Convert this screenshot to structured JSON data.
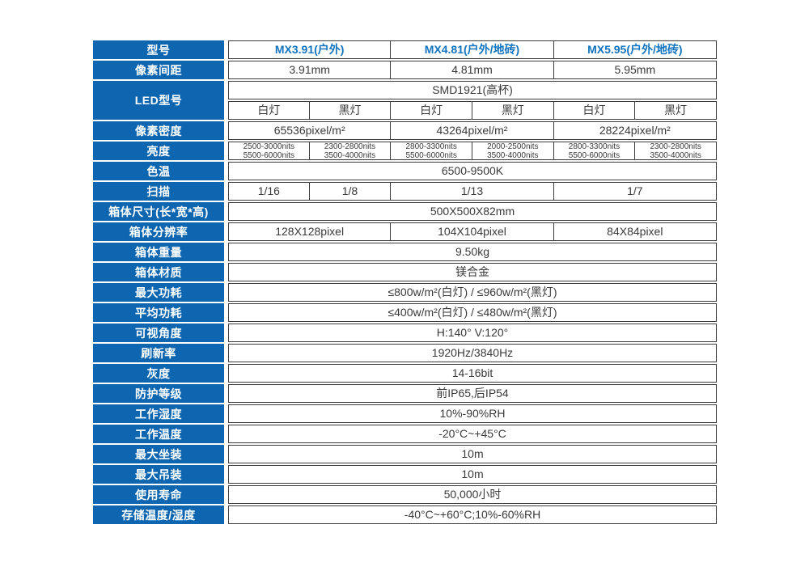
{
  "colors": {
    "label_bg": "#0f66b0",
    "label_fg": "#ffffff",
    "header_fg": "#1274bf",
    "body_fg": "#3a3a3a",
    "border": "#3c3c3c",
    "page_bg": "#ffffff"
  },
  "table": {
    "rows": [
      {
        "label": "型号",
        "type": "header",
        "lines": [
          [
            {
              "t": "MX3.91(户外)",
              "s": 2
            },
            {
              "t": "MX4.81(户外/地砖)",
              "s": 2
            },
            {
              "t": "MX5.95(户外/地砖)",
              "s": 2
            }
          ]
        ]
      },
      {
        "label": "像素间距",
        "lines": [
          [
            {
              "t": "3.91mm",
              "s": 2
            },
            {
              "t": "4.81mm",
              "s": 2
            },
            {
              "t": "5.95mm",
              "s": 2
            }
          ]
        ]
      },
      {
        "label": "LED型号",
        "type": "led",
        "lines": [
          [
            {
              "t": "SMD1921(高杯)",
              "s": 6
            }
          ],
          [
            {
              "t": "白灯",
              "s": 1
            },
            {
              "t": "黑灯",
              "s": 1
            },
            {
              "t": "白灯",
              "s": 1
            },
            {
              "t": "黑灯",
              "s": 1
            },
            {
              "t": "白灯",
              "s": 1
            },
            {
              "t": "黑灯",
              "s": 1
            }
          ]
        ]
      },
      {
        "label": "像素密度",
        "lines": [
          [
            {
              "t": "65536pixel/m²",
              "s": 2
            },
            {
              "t": "43264pixel/m²",
              "s": 2
            },
            {
              "t": "28224pixel/m²",
              "s": 2
            }
          ]
        ]
      },
      {
        "label": "亮度",
        "type": "small",
        "lines": [
          [
            {
              "t": "2500-3000nits\n5500-6000nits",
              "s": 1
            },
            {
              "t": "2300-2800nits\n3500-4000nits",
              "s": 1
            },
            {
              "t": "2800-3300nits\n5500-6000nits",
              "s": 1
            },
            {
              "t": "2000-2500nits\n3500-4000nits",
              "s": 1
            },
            {
              "t": "2800-3300nits\n5500-6000nits",
              "s": 1
            },
            {
              "t": "2300-2800nits\n3500-4000nits",
              "s": 1
            }
          ]
        ]
      },
      {
        "label": "色温",
        "lines": [
          [
            {
              "t": "6500-9500K",
              "s": 6
            }
          ]
        ]
      },
      {
        "label": "扫描",
        "lines": [
          [
            {
              "t": "1/16",
              "s": 1
            },
            {
              "t": "1/8",
              "s": 1
            },
            {
              "t": "1/13",
              "s": 2
            },
            {
              "t": "1/7",
              "s": 2
            }
          ]
        ]
      },
      {
        "label": "箱体尺寸(长*宽*高)",
        "lines": [
          [
            {
              "t": "500X500X82mm",
              "s": 6
            }
          ]
        ]
      },
      {
        "label": "箱体分辨率",
        "lines": [
          [
            {
              "t": "128X128pixel",
              "s": 2
            },
            {
              "t": "104X104pixel",
              "s": 2
            },
            {
              "t": "84X84pixel",
              "s": 2
            }
          ]
        ]
      },
      {
        "label": "箱体重量",
        "lines": [
          [
            {
              "t": "9.50kg",
              "s": 6
            }
          ]
        ]
      },
      {
        "label": "箱体材质",
        "lines": [
          [
            {
              "t": "镁合金",
              "s": 6
            }
          ]
        ]
      },
      {
        "label": "最大功耗",
        "lines": [
          [
            {
              "t": "≤800w/m²(白灯) / ≤960w/m²(黑灯)",
              "s": 6
            }
          ]
        ]
      },
      {
        "label": "平均功耗",
        "lines": [
          [
            {
              "t": "≤400w/m²(白灯) / ≤480w/m²(黑灯)",
              "s": 6
            }
          ]
        ]
      },
      {
        "label": "可视角度",
        "lines": [
          [
            {
              "t": "H:140° V:120°",
              "s": 6
            }
          ]
        ]
      },
      {
        "label": "刷新率",
        "lines": [
          [
            {
              "t": "1920Hz/3840Hz",
              "s": 6
            }
          ]
        ]
      },
      {
        "label": "灰度",
        "lines": [
          [
            {
              "t": "14-16bit",
              "s": 6
            }
          ]
        ]
      },
      {
        "label": "防护等级",
        "lines": [
          [
            {
              "t": "前IP65,后IP54",
              "s": 6
            }
          ]
        ]
      },
      {
        "label": "工作湿度",
        "lines": [
          [
            {
              "t": "10%-90%RH",
              "s": 6
            }
          ]
        ]
      },
      {
        "label": "工作温度",
        "lines": [
          [
            {
              "t": "-20°C~+45°C",
              "s": 6
            }
          ]
        ]
      },
      {
        "label": "最大坐装",
        "lines": [
          [
            {
              "t": "10m",
              "s": 6
            }
          ]
        ]
      },
      {
        "label": "最大吊装",
        "lines": [
          [
            {
              "t": "10m",
              "s": 6
            }
          ]
        ]
      },
      {
        "label": "使用寿命",
        "lines": [
          [
            {
              "t": "50,000小时",
              "s": 6
            }
          ]
        ]
      },
      {
        "label": "存储温度/湿度",
        "lines": [
          [
            {
              "t": "-40°C~+60°C;10%-60%RH",
              "s": 6
            }
          ]
        ]
      }
    ]
  }
}
